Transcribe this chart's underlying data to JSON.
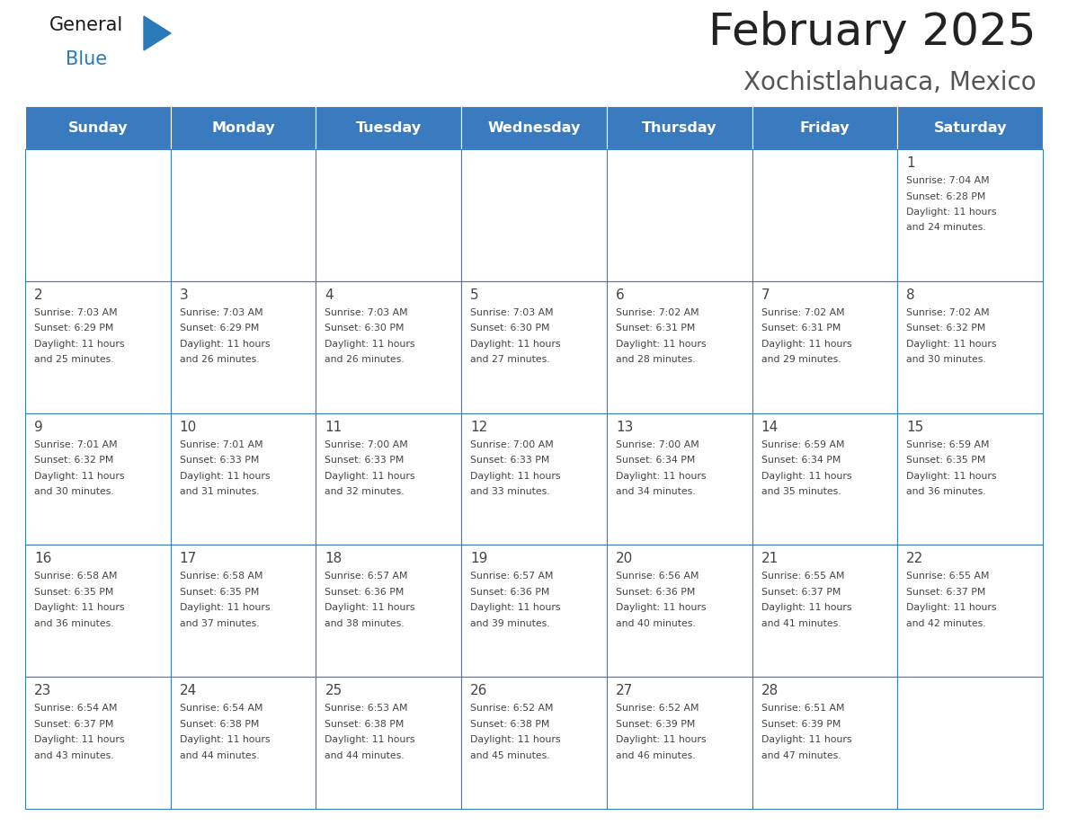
{
  "title": "February 2025",
  "subtitle": "Xochistlahuaca, Mexico",
  "days_of_week": [
    "Sunday",
    "Monday",
    "Tuesday",
    "Wednesday",
    "Thursday",
    "Friday",
    "Saturday"
  ],
  "header_bg": "#3a7bbf",
  "header_text": "#ffffff",
  "cell_bg": "#ffffff",
  "grid_line_color": "#3a7bbf",
  "text_color": "#444444",
  "title_color": "#222222",
  "subtitle_color": "#555555",
  "generalblue_text": "#1a1a1a",
  "generalblue_blue": "#2a7ab8",
  "calendar": [
    [
      null,
      null,
      null,
      null,
      null,
      null,
      1
    ],
    [
      2,
      3,
      4,
      5,
      6,
      7,
      8
    ],
    [
      9,
      10,
      11,
      12,
      13,
      14,
      15
    ],
    [
      16,
      17,
      18,
      19,
      20,
      21,
      22
    ],
    [
      23,
      24,
      25,
      26,
      27,
      28,
      null
    ]
  ],
  "cell_data": {
    "1": {
      "sunrise": "7:04 AM",
      "sunset": "6:28 PM",
      "daylight": "11 hours and 24 minutes."
    },
    "2": {
      "sunrise": "7:03 AM",
      "sunset": "6:29 PM",
      "daylight": "11 hours and 25 minutes."
    },
    "3": {
      "sunrise": "7:03 AM",
      "sunset": "6:29 PM",
      "daylight": "11 hours and 26 minutes."
    },
    "4": {
      "sunrise": "7:03 AM",
      "sunset": "6:30 PM",
      "daylight": "11 hours and 26 minutes."
    },
    "5": {
      "sunrise": "7:03 AM",
      "sunset": "6:30 PM",
      "daylight": "11 hours and 27 minutes."
    },
    "6": {
      "sunrise": "7:02 AM",
      "sunset": "6:31 PM",
      "daylight": "11 hours and 28 minutes."
    },
    "7": {
      "sunrise": "7:02 AM",
      "sunset": "6:31 PM",
      "daylight": "11 hours and 29 minutes."
    },
    "8": {
      "sunrise": "7:02 AM",
      "sunset": "6:32 PM",
      "daylight": "11 hours and 30 minutes."
    },
    "9": {
      "sunrise": "7:01 AM",
      "sunset": "6:32 PM",
      "daylight": "11 hours and 30 minutes."
    },
    "10": {
      "sunrise": "7:01 AM",
      "sunset": "6:33 PM",
      "daylight": "11 hours and 31 minutes."
    },
    "11": {
      "sunrise": "7:00 AM",
      "sunset": "6:33 PM",
      "daylight": "11 hours and 32 minutes."
    },
    "12": {
      "sunrise": "7:00 AM",
      "sunset": "6:33 PM",
      "daylight": "11 hours and 33 minutes."
    },
    "13": {
      "sunrise": "7:00 AM",
      "sunset": "6:34 PM",
      "daylight": "11 hours and 34 minutes."
    },
    "14": {
      "sunrise": "6:59 AM",
      "sunset": "6:34 PM",
      "daylight": "11 hours and 35 minutes."
    },
    "15": {
      "sunrise": "6:59 AM",
      "sunset": "6:35 PM",
      "daylight": "11 hours and 36 minutes."
    },
    "16": {
      "sunrise": "6:58 AM",
      "sunset": "6:35 PM",
      "daylight": "11 hours and 36 minutes."
    },
    "17": {
      "sunrise": "6:58 AM",
      "sunset": "6:35 PM",
      "daylight": "11 hours and 37 minutes."
    },
    "18": {
      "sunrise": "6:57 AM",
      "sunset": "6:36 PM",
      "daylight": "11 hours and 38 minutes."
    },
    "19": {
      "sunrise": "6:57 AM",
      "sunset": "6:36 PM",
      "daylight": "11 hours and 39 minutes."
    },
    "20": {
      "sunrise": "6:56 AM",
      "sunset": "6:36 PM",
      "daylight": "11 hours and 40 minutes."
    },
    "21": {
      "sunrise": "6:55 AM",
      "sunset": "6:37 PM",
      "daylight": "11 hours and 41 minutes."
    },
    "22": {
      "sunrise": "6:55 AM",
      "sunset": "6:37 PM",
      "daylight": "11 hours and 42 minutes."
    },
    "23": {
      "sunrise": "6:54 AM",
      "sunset": "6:37 PM",
      "daylight": "11 hours and 43 minutes."
    },
    "24": {
      "sunrise": "6:54 AM",
      "sunset": "6:38 PM",
      "daylight": "11 hours and 44 minutes."
    },
    "25": {
      "sunrise": "6:53 AM",
      "sunset": "6:38 PM",
      "daylight": "11 hours and 44 minutes."
    },
    "26": {
      "sunrise": "6:52 AM",
      "sunset": "6:38 PM",
      "daylight": "11 hours and 45 minutes."
    },
    "27": {
      "sunrise": "6:52 AM",
      "sunset": "6:39 PM",
      "daylight": "11 hours and 46 minutes."
    },
    "28": {
      "sunrise": "6:51 AM",
      "sunset": "6:39 PM",
      "daylight": "11 hours and 47 minutes."
    }
  },
  "fig_width": 11.88,
  "fig_height": 9.18,
  "dpi": 100
}
